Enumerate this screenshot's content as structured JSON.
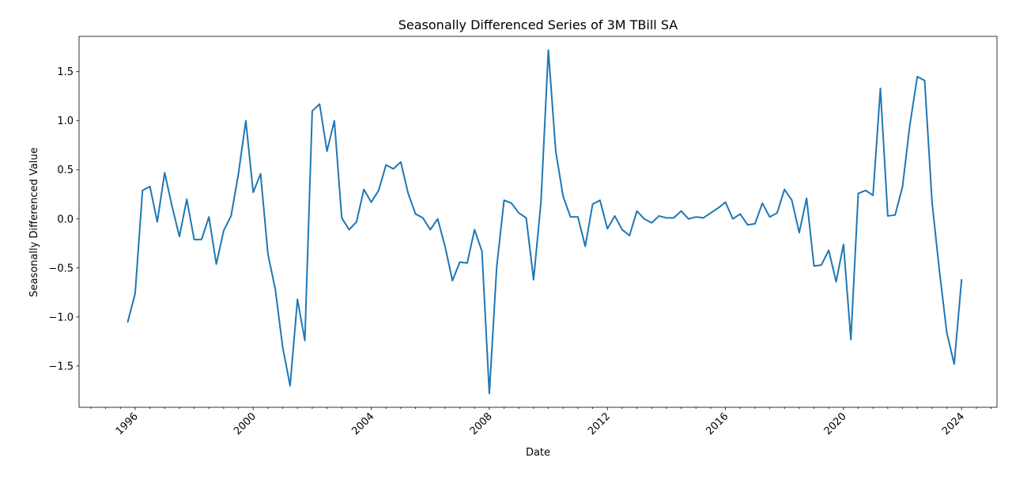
{
  "chart_data": {
    "type": "line",
    "title": "Seasonally Differenced Series of 3M TBill SA",
    "xlabel": "Date",
    "ylabel": "Seasonally Differenced Value",
    "x_range": [
      1994.1,
      2025.2
    ],
    "ylim": [
      -1.92,
      1.86
    ],
    "grid": false,
    "legend": "none",
    "x_ticks": [
      1996,
      2000,
      2004,
      2008,
      2012,
      2016,
      2020,
      2024
    ],
    "x_minor_step": 0.5,
    "y_ticks": [
      -1.5,
      -1.0,
      -0.5,
      0.0,
      0.5,
      1.0,
      1.5
    ],
    "y_tick_labels": [
      "−1.5",
      "−1.0",
      "−0.5",
      "0.0",
      "0.5",
      "1.0",
      "1.5"
    ],
    "series": [
      {
        "color": "#1f77b4",
        "x": [
          1995.75,
          1996.0,
          1996.25,
          1996.5,
          1996.75,
          1997.0,
          1997.25,
          1997.5,
          1997.75,
          1998.0,
          1998.25,
          1998.5,
          1998.75,
          1999.0,
          1999.25,
          1999.5,
          1999.75,
          2000.0,
          2000.25,
          2000.5,
          2000.75,
          2001.0,
          2001.25,
          2001.5,
          2001.75,
          2002.0,
          2002.25,
          2002.5,
          2002.75,
          2003.0,
          2003.25,
          2003.5,
          2003.75,
          2004.0,
          2004.25,
          2004.5,
          2004.75,
          2005.0,
          2005.25,
          2005.5,
          2005.75,
          2006.0,
          2006.25,
          2006.5,
          2006.75,
          2007.0,
          2007.25,
          2007.5,
          2007.75,
          2008.0,
          2008.25,
          2008.5,
          2008.75,
          2009.0,
          2009.25,
          2009.5,
          2009.75,
          2010.0,
          2010.25,
          2010.5,
          2010.75,
          2011.0,
          2011.25,
          2011.5,
          2011.75,
          2012.0,
          2012.25,
          2012.5,
          2012.75,
          2013.0,
          2013.25,
          2013.5,
          2013.75,
          2014.0,
          2014.25,
          2014.5,
          2014.75,
          2015.0,
          2015.25,
          2015.5,
          2015.75,
          2016.0,
          2016.25,
          2016.5,
          2016.75,
          2017.0,
          2017.25,
          2017.5,
          2017.75,
          2018.0,
          2018.25,
          2018.5,
          2018.75,
          2019.0,
          2019.25,
          2019.5,
          2019.75,
          2020.0,
          2020.25,
          2020.5,
          2020.75,
          2021.0,
          2021.25,
          2021.5,
          2021.75,
          2022.0,
          2022.25,
          2022.5,
          2022.75,
          2023.0,
          2023.25,
          2023.5,
          2023.75,
          2024.0
        ],
        "values": [
          -1.05,
          -0.76,
          0.29,
          0.33,
          -0.03,
          0.47,
          0.13,
          -0.18,
          0.2,
          -0.21,
          -0.21,
          0.02,
          -0.46,
          -0.12,
          0.03,
          0.46,
          1.0,
          0.27,
          0.46,
          -0.36,
          -0.72,
          -1.31,
          -1.7,
          -0.82,
          -1.24,
          1.1,
          1.17,
          0.69,
          1.0,
          0.01,
          -0.11,
          -0.03,
          0.3,
          0.17,
          0.29,
          0.55,
          0.51,
          0.58,
          0.26,
          0.05,
          0.01,
          -0.11,
          0.0,
          -0.28,
          -0.63,
          -0.44,
          -0.45,
          -0.11,
          -0.33,
          -1.78,
          -0.49,
          0.19,
          0.16,
          0.06,
          0.01,
          -0.62,
          0.17,
          1.72,
          0.69,
          0.23,
          0.02,
          0.02,
          -0.28,
          0.15,
          0.19,
          -0.1,
          0.03,
          -0.11,
          -0.17,
          0.08,
          0.0,
          -0.04,
          0.03,
          0.01,
          0.01,
          0.08,
          0.0,
          0.02,
          0.01,
          0.06,
          0.11,
          0.17,
          0.0,
          0.05,
          -0.06,
          -0.05,
          0.16,
          0.02,
          0.06,
          0.3,
          0.19,
          -0.14,
          0.21,
          -0.48,
          -0.47,
          -0.32,
          -0.64,
          -0.26,
          -1.23,
          0.26,
          0.29,
          0.24,
          1.33,
          0.03,
          0.04,
          0.33,
          0.96,
          1.45,
          1.41,
          0.17,
          -0.53,
          -1.16,
          -1.48,
          -0.62
        ]
      }
    ]
  }
}
